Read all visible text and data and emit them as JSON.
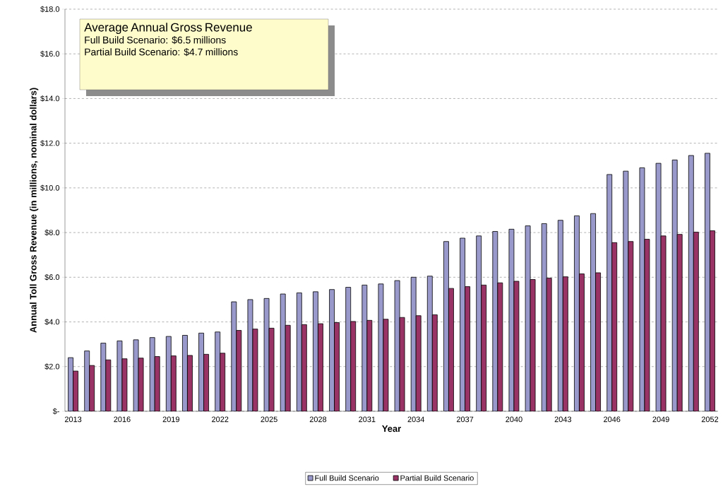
{
  "chart_data": {
    "type": "bar",
    "xlabel": "Year",
    "ylabel": "Annual Toll Gross Revenue (in millions, nominal dollars)",
    "annotations": [
      "Average Annual Gross Revenue",
      "Full Build Scenario: $6.5 millions",
      "Partial Build Scenario: $4.7 millions"
    ],
    "categories": [
      "2013",
      null,
      null,
      "2016",
      null,
      null,
      "2019",
      null,
      null,
      "2022",
      null,
      null,
      "2025",
      null,
      null,
      "2028",
      null,
      null,
      "2031",
      null,
      null,
      "2034",
      null,
      null,
      "2037",
      null,
      null,
      "2040",
      null,
      null,
      "2043",
      null,
      null,
      "2046",
      null,
      null,
      "2049",
      null,
      null,
      "2052"
    ],
    "series": [
      {
        "name": "Full Build Scenario",
        "color": "#9999cc",
        "values": [
          2.4,
          2.7,
          3.05,
          3.15,
          3.2,
          3.3,
          3.35,
          3.4,
          3.5,
          3.55,
          4.9,
          5.0,
          5.05,
          5.25,
          5.3,
          5.35,
          5.45,
          5.55,
          5.65,
          5.7,
          5.85,
          6.0,
          6.05,
          7.6,
          7.75,
          7.85,
          8.05,
          8.15,
          8.3,
          8.4,
          8.55,
          8.75,
          8.85,
          10.6,
          10.75,
          10.9,
          11.1,
          11.25,
          11.45,
          11.55
        ]
      },
      {
        "name": "Partial Build Scenario",
        "color": "#993366",
        "values": [
          1.8,
          2.05,
          2.3,
          2.35,
          2.38,
          2.45,
          2.48,
          2.5,
          2.55,
          2.6,
          3.62,
          3.68,
          3.72,
          3.85,
          3.88,
          3.92,
          3.97,
          4.02,
          4.07,
          4.12,
          4.2,
          4.28,
          4.32,
          5.5,
          5.58,
          5.65,
          5.75,
          5.82,
          5.9,
          5.96,
          6.02,
          6.15,
          6.2,
          7.55,
          7.6,
          7.7,
          7.85,
          7.92,
          8.02,
          8.08
        ]
      }
    ],
    "ylim": [
      0,
      18
    ],
    "yticks": [
      {
        "value": 0,
        "label": "$-"
      },
      {
        "value": 2,
        "label": "$2.0"
      },
      {
        "value": 4,
        "label": "$4.0"
      },
      {
        "value": 6,
        "label": "$6.0"
      },
      {
        "value": 8,
        "label": "$8.0"
      },
      {
        "value": 10,
        "label": "$10.0"
      },
      {
        "value": 12,
        "label": "$12.0"
      },
      {
        "value": 14,
        "label": "$14.0"
      },
      {
        "value": 16,
        "label": "$16.0"
      },
      {
        "value": 18,
        "label": "$18.0"
      }
    ],
    "grid": "y",
    "legend": "bottom"
  }
}
